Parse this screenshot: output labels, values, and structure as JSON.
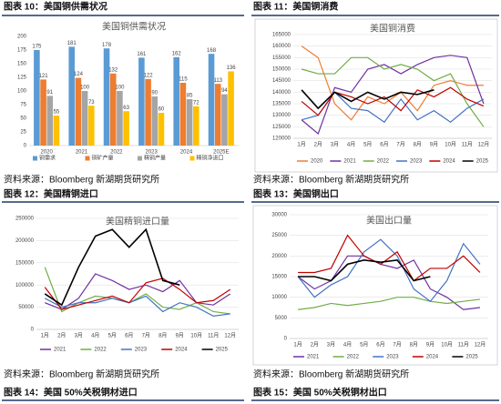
{
  "captions": [
    "图表 10：美国铜供需状况",
    "图表 11：美国铜消费",
    "图表 12：美国精铜进口",
    "图表 13：美国铜出口",
    "图表 14：美国 50%关税铜材进口",
    "图表 15：美国 50%关税铜材出口"
  ],
  "sources": [
    "资料来源：Bloomberg 新湖期货研究所",
    "资料来源：Bloomberg 新湖期货研究所",
    "资料来源：Bloomberg 新湖期货研究所",
    "资料来源：Bloomberg 新湖期货研究所"
  ],
  "chart_data": [
    {
      "type": "bar",
      "title": "美国铜供需状况",
      "categories": [
        "2020",
        "2021",
        "2022",
        "2023",
        "2024",
        "2025E"
      ],
      "series": [
        {
          "name": "铜需求",
          "color": "#5b9bd5",
          "values": [
            175,
            181,
            178,
            161,
            162,
            168
          ]
        },
        {
          "name": "铜矿产量",
          "color": "#ed7d31",
          "values": [
            121,
            124,
            132,
            122,
            115,
            113
          ]
        },
        {
          "name": "精铜产量",
          "color": "#a5a5a5",
          "values": [
            91,
            100,
            100,
            90,
            85,
            94
          ]
        },
        {
          "name": "精铜净进口",
          "color": "#ffc000",
          "values": [
            55,
            73,
            63,
            60,
            72,
            136
          ]
        }
      ],
      "ylim": [
        0,
        200
      ],
      "yticks": [
        0,
        25,
        50,
        75,
        100,
        125,
        150,
        175,
        200
      ],
      "grid": false
    },
    {
      "type": "line",
      "title": "美国铜消费",
      "categories": [
        "1月",
        "2月",
        "3月",
        "4月",
        "5月",
        "6月",
        "7月",
        "8月",
        "9月",
        "10月",
        "11月",
        "12月"
      ],
      "series": [
        {
          "name": "2020",
          "color": "#ed7d31",
          "values": [
            160000,
            155000,
            135000,
            128000,
            138000,
            135000,
            140000,
            132000,
            143000,
            145000,
            143000,
            143000
          ]
        },
        {
          "name": "2021",
          "color": "#7030a0",
          "values": [
            128000,
            122000,
            142000,
            140000,
            150000,
            152000,
            148000,
            152000,
            155000,
            156000,
            155000,
            135000
          ]
        },
        {
          "name": "2022",
          "color": "#70ad47",
          "values": [
            150000,
            148000,
            148000,
            155000,
            155000,
            150000,
            152000,
            150000,
            145000,
            148000,
            135000,
            125000
          ]
        },
        {
          "name": "2023",
          "color": "#4472c4",
          "values": [
            128000,
            130000,
            140000,
            133000,
            132000,
            127000,
            137000,
            128000,
            132000,
            127000,
            133000,
            137000
          ]
        },
        {
          "name": "2024",
          "color": "#c00000",
          "values": [
            136000,
            130000,
            140000,
            138000,
            135000,
            138000,
            132000,
            141000,
            138000,
            142000,
            137000,
            134000
          ]
        },
        {
          "name": "2025",
          "color": "#000000",
          "values": [
            141000,
            133000,
            140000,
            136000,
            140000,
            137000,
            140000,
            139000,
            141000,
            null,
            null,
            null
          ]
        }
      ],
      "ylim": [
        120000,
        165000
      ],
      "yticks": [
        120000,
        125000,
        130000,
        135000,
        140000,
        145000,
        150000,
        155000,
        160000,
        165000
      ],
      "grid": true
    },
    {
      "type": "line",
      "title": "美国精铜进口量",
      "categories": [
        "1月",
        "2月",
        "3月",
        "4月",
        "5月",
        "6月",
        "7月",
        "8月",
        "9月",
        "10月",
        "11月",
        "12月"
      ],
      "series": [
        {
          "name": "2021",
          "color": "#7030a0",
          "values": [
            60000,
            45000,
            70000,
            125000,
            110000,
            90000,
            100000,
            85000,
            110000,
            60000,
            55000,
            80000
          ]
        },
        {
          "name": "2022",
          "color": "#70ad47",
          "values": [
            140000,
            40000,
            60000,
            75000,
            70000,
            60000,
            80000,
            50000,
            45000,
            60000,
            40000,
            35000
          ]
        },
        {
          "name": "2023",
          "color": "#4472c4",
          "values": [
            70000,
            50000,
            60000,
            60000,
            70000,
            60000,
            75000,
            40000,
            60000,
            50000,
            30000,
            35000
          ]
        },
        {
          "name": "2024",
          "color": "#c00000",
          "values": [
            95000,
            45000,
            55000,
            65000,
            75000,
            60000,
            105000,
            115000,
            90000,
            60000,
            65000,
            90000
          ]
        },
        {
          "name": "2025",
          "color": "#000000",
          "values": [
            80000,
            55000,
            140000,
            210000,
            225000,
            185000,
            225000,
            110000,
            100000,
            null,
            null,
            null
          ]
        }
      ],
      "ylim": [
        0,
        250000
      ],
      "yticks": [
        0,
        50000,
        100000,
        150000,
        200000,
        250000
      ],
      "grid": true
    },
    {
      "type": "line",
      "title": "美国出口量",
      "categories": [
        "1月",
        "2月",
        "3月",
        "4月",
        "5月",
        "6月",
        "7月",
        "8月",
        "9月",
        "10月",
        "11月",
        "12月"
      ],
      "series": [
        {
          "name": "2021",
          "color": "#7030a0",
          "values": [
            15000,
            12000,
            14000,
            20000,
            20000,
            18000,
            17000,
            19000,
            12000,
            10000,
            7000,
            7500
          ]
        },
        {
          "name": "2022",
          "color": "#70ad47",
          "values": [
            7000,
            7500,
            8500,
            8000,
            8500,
            9000,
            10000,
            10000,
            9000,
            8500,
            9000,
            9500
          ]
        },
        {
          "name": "2023",
          "color": "#4472c4",
          "values": [
            15000,
            10000,
            13000,
            15000,
            21000,
            24000,
            20000,
            12000,
            9000,
            14000,
            23000,
            18000
          ]
        },
        {
          "name": "2024",
          "color": "#c00000",
          "values": [
            16000,
            16000,
            17000,
            25000,
            20000,
            18000,
            21000,
            14000,
            17000,
            17000,
            20000,
            16000
          ]
        },
        {
          "name": "2025",
          "color": "#000000",
          "values": [
            15000,
            15000,
            14000,
            18000,
            19000,
            18500,
            19000,
            14000,
            15000,
            null,
            null,
            null
          ]
        }
      ],
      "ylim": [
        0,
        30000
      ],
      "yticks": [
        0,
        5000,
        10000,
        15000,
        20000,
        25000,
        30000
      ],
      "grid": true
    }
  ]
}
